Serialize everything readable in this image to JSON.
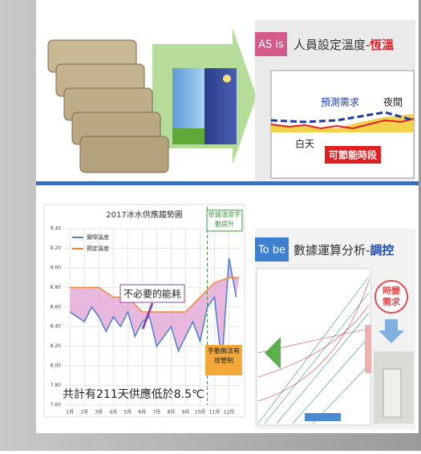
{
  "as_is": {
    "tag": "AS is",
    "title": "人員設定溫度-",
    "title_highlight": "恆溫",
    "forecast": "預測需求",
    "night": "夜間",
    "day": "白天",
    "saving": "可節能時段"
  },
  "to_be": {
    "tag": "To be",
    "title": "數據運算分析-",
    "title_highlight": "調控",
    "bubble_lines": [
      "時變",
      "需求"
    ]
  },
  "chart_data": {
    "type": "line",
    "title": "2017冰水供應趨勢圖",
    "xlim": [
      0.6,
      12.8
    ],
    "xticks": [
      {
        "value": 1,
        "label": "1月"
      },
      {
        "value": 2,
        "label": "2月"
      },
      {
        "value": 3,
        "label": "3月"
      },
      {
        "value": 4,
        "label": "4月"
      },
      {
        "value": 5,
        "label": "5月"
      },
      {
        "value": 6,
        "label": "6月"
      },
      {
        "value": 7,
        "label": "7月"
      },
      {
        "value": 8,
        "label": "8月"
      },
      {
        "value": 9,
        "label": "9月"
      },
      {
        "value": 10,
        "label": "10月"
      },
      {
        "value": 11,
        "label": "11月"
      },
      {
        "value": 12,
        "label": "12月"
      }
    ],
    "ylim": [
      7.6,
      9.4
    ],
    "yticks": [
      {
        "value": 7.6,
        "label": "7.60"
      },
      {
        "value": 7.8,
        "label": "7.80"
      },
      {
        "value": 8.0,
        "label": "8.00"
      },
      {
        "value": 8.2,
        "label": "8.20"
      },
      {
        "value": 8.4,
        "label": "8.40"
      },
      {
        "value": 8.6,
        "label": "8.60"
      },
      {
        "value": 8.8,
        "label": "8.80"
      },
      {
        "value": 9.0,
        "label": "9.00"
      },
      {
        "value": 9.2,
        "label": "9.20"
      },
      {
        "value": 9.4,
        "label": "9.40"
      }
    ],
    "grid": true,
    "series": [
      {
        "name": "實際溫度",
        "color": "#4a7fd0",
        "x": [
          1,
          1.5,
          2,
          2.5,
          3,
          3.5,
          4,
          4.5,
          5,
          5.5,
          6,
          6.5,
          7,
          7.5,
          8,
          8.5,
          9,
          9.5,
          10,
          10.5,
          11,
          11.5,
          12,
          12.5
        ],
        "values": [
          8.55,
          8.5,
          8.45,
          8.6,
          8.5,
          8.35,
          8.5,
          8.4,
          8.55,
          8.3,
          8.45,
          8.5,
          8.2,
          8.3,
          8.4,
          8.15,
          8.3,
          8.45,
          8.25,
          8.6,
          8.7,
          8.0,
          9.1,
          8.7
        ]
      },
      {
        "name": "預定溫度",
        "color": "#f0883a",
        "x": [
          1,
          2,
          3,
          4,
          5,
          6,
          7,
          8,
          9,
          10,
          11,
          12,
          12.7
        ],
        "values": [
          8.8,
          8.8,
          8.8,
          8.7,
          8.7,
          8.55,
          8.55,
          8.55,
          8.55,
          8.7,
          8.85,
          8.9,
          8.9
        ]
      }
    ],
    "annotations": {
      "waste": "不必要的能耗",
      "summary": "共計有211天供應低於8.5℃",
      "manual_raise": "依據溫度手動提升",
      "manual_fail": "手動無法有效管制"
    }
  }
}
